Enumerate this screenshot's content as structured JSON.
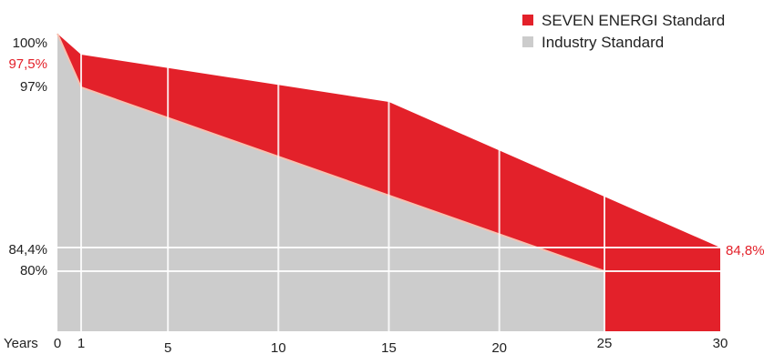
{
  "chart_data": {
    "type": "area",
    "xlabel": "Years",
    "x_ticks": [
      "0",
      "1",
      "5",
      "10",
      "15",
      "20",
      "25",
      "30"
    ],
    "y_ticks": [
      {
        "label": "100%",
        "value": 100,
        "highlight": false
      },
      {
        "label": "97,5%",
        "value": 97.5,
        "highlight": true
      },
      {
        "label": "97%",
        "value": 97,
        "highlight": false
      },
      {
        "label": "84,4%",
        "value": 84.4,
        "highlight": false
      },
      {
        "label": "80%",
        "value": 80,
        "highlight": false
      }
    ],
    "end_label": "84,8%",
    "xlim": [
      0,
      30
    ],
    "grid": true,
    "legend_position": "top-right",
    "series": [
      {
        "name": "SEVEN ENERGI Standard",
        "color": "#e3212a",
        "x": [
          0,
          1,
          15,
          30
        ],
        "y": [
          100,
          97.5,
          94.5,
          84.8
        ]
      },
      {
        "name": "Industry Standard",
        "color": "#cccccc",
        "x": [
          0,
          1,
          25
        ],
        "y": [
          100,
          97,
          80
        ]
      }
    ]
  }
}
